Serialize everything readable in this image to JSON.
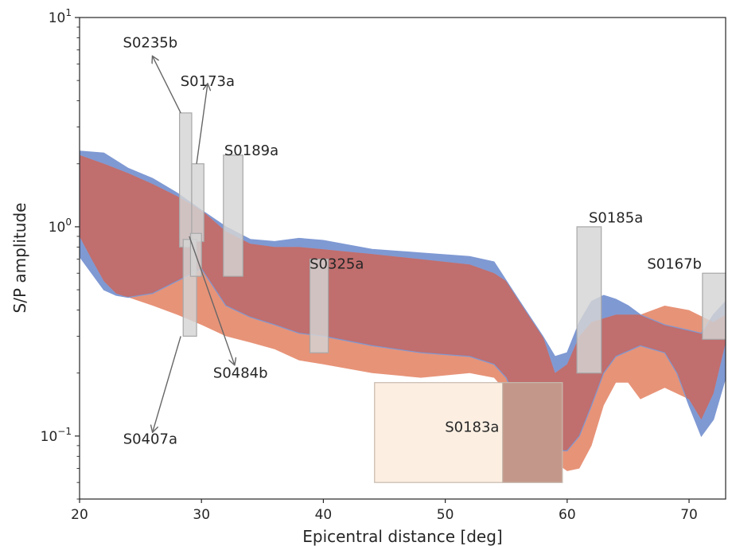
{
  "chart_data": {
    "type": "area",
    "xlabel": "Epicentral distance [deg]",
    "ylabel": "S/P amplitude",
    "xlim": [
      20,
      73
    ],
    "ylim": [
      0.05,
      10
    ],
    "yscale": "log",
    "grid": false,
    "x_ticks": [
      20,
      30,
      40,
      50,
      60,
      70
    ],
    "y_ticks": [
      {
        "value": 0.1,
        "base": "10",
        "exp": "−1"
      },
      {
        "value": 1,
        "base": "10",
        "exp": "0"
      },
      {
        "value": 10,
        "base": "10",
        "exp": "1"
      }
    ],
    "colors": {
      "blue": "#7f99d3",
      "orange": "#e58a6d",
      "overlap": "#c06e6e",
      "grey_box": "#d4d4d4",
      "peach_box": "#fcefe2",
      "brown_box": "#b8887a",
      "arrow": "#666666",
      "axes": "#262626"
    },
    "series": [
      {
        "color": "blue",
        "upper": [
          [
            20,
            2.3
          ],
          [
            22,
            2.25
          ],
          [
            24,
            1.9
          ],
          [
            26,
            1.7
          ],
          [
            28,
            1.45
          ],
          [
            30,
            1.2
          ],
          [
            32,
            1.0
          ],
          [
            34,
            0.87
          ],
          [
            36,
            0.85
          ],
          [
            38,
            0.88
          ],
          [
            40,
            0.86
          ],
          [
            44,
            0.78
          ],
          [
            48,
            0.75
          ],
          [
            52,
            0.72
          ],
          [
            54,
            0.68
          ],
          [
            56,
            0.45
          ],
          [
            58,
            0.3
          ],
          [
            59,
            0.24
          ],
          [
            60,
            0.25
          ],
          [
            61,
            0.35
          ],
          [
            62,
            0.44
          ],
          [
            63,
            0.47
          ],
          [
            64,
            0.45
          ],
          [
            65,
            0.42
          ],
          [
            66,
            0.38
          ],
          [
            68,
            0.34
          ],
          [
            70,
            0.32
          ],
          [
            71,
            0.31
          ],
          [
            72,
            0.38
          ],
          [
            73,
            0.44
          ]
        ],
        "lower": [
          [
            20,
            0.72
          ],
          [
            21,
            0.6
          ],
          [
            22,
            0.5
          ],
          [
            23,
            0.47
          ],
          [
            24,
            0.46
          ],
          [
            26,
            0.48
          ],
          [
            28,
            0.55
          ],
          [
            30,
            0.63
          ],
          [
            32,
            0.42
          ],
          [
            34,
            0.37
          ],
          [
            36,
            0.34
          ],
          [
            38,
            0.31
          ],
          [
            40,
            0.3
          ],
          [
            44,
            0.27
          ],
          [
            48,
            0.25
          ],
          [
            52,
            0.24
          ],
          [
            54,
            0.22
          ],
          [
            55,
            0.19
          ],
          [
            56,
            0.14
          ],
          [
            57,
            0.1
          ],
          [
            58,
            0.085
          ],
          [
            60,
            0.085
          ],
          [
            61,
            0.1
          ],
          [
            62,
            0.14
          ],
          [
            63,
            0.2
          ],
          [
            64,
            0.24
          ],
          [
            66,
            0.27
          ],
          [
            68,
            0.25
          ],
          [
            69,
            0.2
          ],
          [
            70,
            0.14
          ],
          [
            71,
            0.1
          ],
          [
            72,
            0.12
          ],
          [
            73,
            0.19
          ]
        ]
      },
      {
        "color": "orange",
        "upper": [
          [
            20,
            2.2
          ],
          [
            22,
            2.0
          ],
          [
            24,
            1.8
          ],
          [
            26,
            1.6
          ],
          [
            28,
            1.4
          ],
          [
            30,
            1.2
          ],
          [
            32,
            0.95
          ],
          [
            34,
            0.83
          ],
          [
            36,
            0.8
          ],
          [
            38,
            0.8
          ],
          [
            40,
            0.78
          ],
          [
            44,
            0.74
          ],
          [
            48,
            0.7
          ],
          [
            52,
            0.66
          ],
          [
            54,
            0.6
          ],
          [
            55,
            0.55
          ],
          [
            56,
            0.45
          ],
          [
            58,
            0.3
          ],
          [
            59,
            0.2
          ],
          [
            60,
            0.22
          ],
          [
            61,
            0.3
          ],
          [
            62,
            0.35
          ],
          [
            64,
            0.38
          ],
          [
            66,
            0.38
          ],
          [
            68,
            0.42
          ],
          [
            70,
            0.4
          ],
          [
            72,
            0.35
          ],
          [
            73,
            0.38
          ]
        ],
        "lower": [
          [
            20,
            0.9
          ],
          [
            21,
            0.7
          ],
          [
            22,
            0.55
          ],
          [
            23,
            0.48
          ],
          [
            24,
            0.46
          ],
          [
            26,
            0.42
          ],
          [
            28,
            0.38
          ],
          [
            30,
            0.34
          ],
          [
            32,
            0.3
          ],
          [
            34,
            0.28
          ],
          [
            36,
            0.26
          ],
          [
            38,
            0.23
          ],
          [
            40,
            0.22
          ],
          [
            44,
            0.2
          ],
          [
            48,
            0.19
          ],
          [
            52,
            0.2
          ],
          [
            54,
            0.19
          ],
          [
            56,
            0.14
          ],
          [
            58,
            0.09
          ],
          [
            59,
            0.075
          ],
          [
            60,
            0.068
          ],
          [
            61,
            0.07
          ],
          [
            62,
            0.09
          ],
          [
            63,
            0.14
          ],
          [
            64,
            0.18
          ],
          [
            65,
            0.18
          ],
          [
            66,
            0.15
          ],
          [
            68,
            0.17
          ],
          [
            70,
            0.15
          ],
          [
            71,
            0.12
          ],
          [
            72,
            0.16
          ],
          [
            73,
            0.28
          ]
        ]
      }
    ],
    "event_boxes": [
      {
        "label": "",
        "x0": 28.2,
        "x1": 29.2,
        "y0": 0.8,
        "y1": 3.5,
        "color": "grey_box"
      },
      {
        "label": "",
        "x0": 29.2,
        "x1": 30.2,
        "y0": 0.85,
        "y1": 2.0,
        "color": "grey_box"
      },
      {
        "label": "",
        "x0": 31.8,
        "x1": 33.4,
        "y0": 0.58,
        "y1": 2.2,
        "color": "grey_box"
      },
      {
        "label": "",
        "x0": 38.9,
        "x1": 40.4,
        "y0": 0.25,
        "y1": 0.7,
        "color": "grey_box"
      },
      {
        "label": "",
        "x0": 60.8,
        "x1": 62.8,
        "y0": 0.2,
        "y1": 1.0,
        "color": "grey_box"
      },
      {
        "label": "",
        "x0": 71.1,
        "x1": 73.2,
        "y0": 0.29,
        "y1": 0.6,
        "color": "grey_box"
      },
      {
        "label": "",
        "x0": 28.5,
        "x1": 29.6,
        "y0": 0.3,
        "y1": 0.87,
        "color": "grey_box"
      },
      {
        "label": "",
        "x0": 29.1,
        "x1": 30.0,
        "y0": 0.58,
        "y1": 0.93,
        "color": "grey_box"
      },
      {
        "label": "",
        "x0": 44.2,
        "x1": 59.6,
        "y0": 0.06,
        "y1": 0.18,
        "color": "peach_box"
      },
      {
        "label": "",
        "x0": 54.7,
        "x1": 59.6,
        "y0": 0.06,
        "y1": 0.18,
        "color": "brown_box"
      }
    ],
    "labels": [
      {
        "text": "S0235b",
        "x": 25.8,
        "y": 7.2
      },
      {
        "text": "S0173a",
        "x": 30.5,
        "y": 4.7
      },
      {
        "text": "S0189a",
        "x": 34.1,
        "y": 2.2
      },
      {
        "text": "S0325a",
        "x": 41.1,
        "y": 0.63
      },
      {
        "text": "S0185a",
        "x": 64.0,
        "y": 1.05
      },
      {
        "text": "S0167b",
        "x": 68.8,
        "y": 0.63
      },
      {
        "text": "S0484b",
        "x": 33.2,
        "y": 0.19
      },
      {
        "text": "S0407a",
        "x": 25.8,
        "y": 0.092
      },
      {
        "text": "S0183a",
        "x": 52.2,
        "y": 0.105
      }
    ],
    "arrows": [
      {
        "from": [
          28.3,
          3.5
        ],
        "to": [
          26.0,
          6.5
        ]
      },
      {
        "from": [
          29.6,
          2.0
        ],
        "to": [
          30.5,
          4.8
        ]
      },
      {
        "from": [
          29.0,
          0.9
        ],
        "to": [
          32.7,
          0.22
        ]
      },
      {
        "from": [
          28.3,
          0.3
        ],
        "to": [
          26.0,
          0.105
        ]
      }
    ]
  }
}
